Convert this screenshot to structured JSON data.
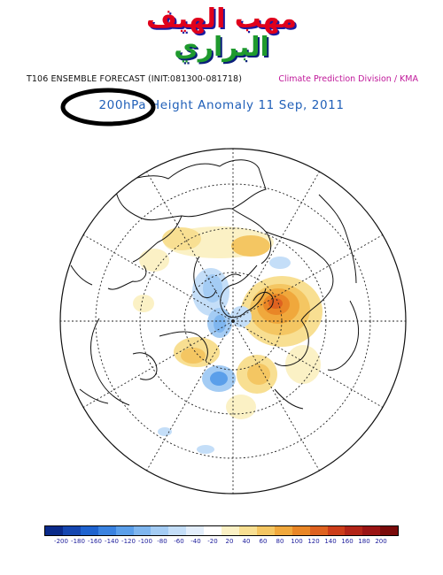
{
  "logo": {
    "line1": "مهب الهيف",
    "line2": "البراري"
  },
  "header": {
    "left": "T106 ENSEMBLE FORECAST (INIT:081300-081718)",
    "right": "Climate Prediction Division / KMA"
  },
  "title": "200hPa Height Anomaly 11 Sep, 2011",
  "colorbar": {
    "colors": [
      "#0a2a8a",
      "#1546b0",
      "#1f63cf",
      "#3a82e0",
      "#5b9fea",
      "#7fb6ef",
      "#a4ccf4",
      "#c4def8",
      "#e3eefb",
      "#ffffff",
      "#fbf1c5",
      "#f8df92",
      "#f4c662",
      "#f0a83c",
      "#e98626",
      "#de6220",
      "#cc3d1a",
      "#b22418",
      "#9a1414",
      "#7a0b0b"
    ],
    "tick_labels": [
      "-200",
      "-180",
      "-160",
      "-140",
      "-120",
      "-100",
      "-80",
      "-60",
      "-40",
      "-20",
      "20",
      "40",
      "60",
      "80",
      "100",
      "120",
      "140",
      "160",
      "180",
      "200"
    ]
  }
}
